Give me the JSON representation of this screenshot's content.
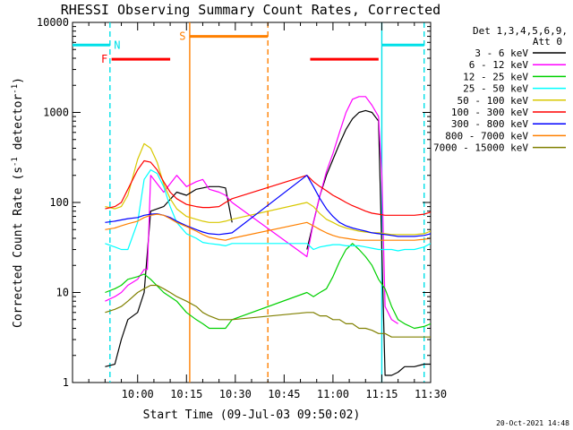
{
  "chart_data": {
    "type": "line",
    "title": "RHESSI Observing Summary Count Rates, Corrected",
    "xlabel": "Start Time (09-Jul-03 09:50:02)",
    "ylabel_main": "Corrected Count Rate (s",
    "ylabel_sup1": "-1",
    "ylabel_mid": " detector",
    "ylabel_sup2": "-1",
    "ylabel_end": ")",
    "yscale": "log",
    "ylim": [
      1,
      10000
    ],
    "xlim": [
      -10,
      100
    ],
    "x_units": "minutes after 09:50",
    "x_ticks": [
      {
        "x": 10,
        "label": "10:00"
      },
      {
        "x": 25,
        "label": "10:15"
      },
      {
        "x": 40,
        "label": "10:30"
      },
      {
        "x": 55,
        "label": "10:45"
      },
      {
        "x": 70,
        "label": "11:00"
      },
      {
        "x": 85,
        "label": "11:15"
      },
      {
        "x": 100,
        "label": "11:30"
      }
    ],
    "y_ticks": [
      {
        "y": 1,
        "label": "1"
      },
      {
        "y": 10,
        "label": "10"
      },
      {
        "y": 100,
        "label": "100"
      },
      {
        "y": 1000,
        "label": "1000"
      },
      {
        "y": 10000,
        "label": "10000"
      }
    ],
    "legend_header_1": "Det 1,3,4,5,6,9,",
    "legend_header_2": "Att 0",
    "legend_position": "top-right",
    "timestamp": "20-Oct-2021 14:48",
    "series": [
      {
        "name": "3 - 6 keV",
        "color": "#000000",
        "x": [
          -10,
          -1,
          0,
          3,
          5,
          7,
          10,
          12,
          14,
          18,
          22,
          25,
          28,
          30,
          32,
          35,
          37,
          39,
          41,
          58,
          62,
          64,
          66,
          68,
          70,
          72,
          74,
          76,
          78,
          80,
          82,
          84,
          86,
          88,
          90,
          92,
          95,
          98,
          100
        ],
        "values": [
          null,
          null,
          1.5,
          1.6,
          3,
          5,
          6,
          10,
          80,
          90,
          130,
          120,
          140,
          145,
          150,
          150,
          145,
          60,
          null,
          null,
          30,
          60,
          120,
          200,
          300,
          450,
          650,
          850,
          1000,
          1050,
          1000,
          800,
          1.2,
          1.2,
          1.3,
          1.5,
          1.5,
          1.6,
          1.6
        ]
      },
      {
        "name": "6 - 12 keV",
        "color": "#ff00ff",
        "x": [
          -1,
          0,
          3,
          5,
          7,
          10,
          12,
          13,
          14,
          18,
          22,
          25,
          28,
          30,
          32,
          35,
          37,
          39,
          62,
          64,
          66,
          68,
          70,
          72,
          74,
          76,
          78,
          80,
          82,
          84,
          85,
          86,
          88,
          90
        ],
        "values": [
          null,
          8,
          9,
          10,
          12,
          14,
          18,
          18,
          200,
          130,
          200,
          150,
          170,
          180,
          140,
          130,
          120,
          100,
          25,
          60,
          120,
          220,
          350,
          600,
          1000,
          1400,
          1500,
          1500,
          1200,
          900,
          200,
          7,
          5,
          4.5
        ]
      },
      {
        "name": "12 - 25 keV",
        "color": "#00d000",
        "x": [
          -1,
          0,
          3,
          5,
          7,
          10,
          12,
          14,
          18,
          22,
          25,
          28,
          30,
          32,
          35,
          37,
          39,
          62,
          64,
          66,
          68,
          70,
          72,
          74,
          76,
          78,
          80,
          82,
          84,
          86,
          88,
          90,
          92,
          95,
          98,
          100
        ],
        "values": [
          null,
          10,
          11,
          12,
          14,
          15,
          16,
          14,
          10,
          8,
          6,
          5,
          4.5,
          4,
          4,
          4,
          5,
          10,
          9,
          10,
          11,
          15,
          22,
          30,
          35,
          30,
          25,
          20,
          14,
          11,
          7,
          5,
          4.5,
          4,
          4.2,
          4.5
        ]
      },
      {
        "name": "25 - 50 keV",
        "color": "#00ffff",
        "x": [
          -1,
          0,
          3,
          5,
          7,
          10,
          12,
          14,
          16,
          18,
          20,
          22,
          25,
          28,
          30,
          32,
          35,
          37,
          39,
          62,
          64,
          66,
          68,
          70,
          72,
          74,
          76,
          78,
          80,
          82,
          84,
          86,
          88,
          90,
          92,
          95,
          98,
          100
        ],
        "values": [
          null,
          35,
          32,
          30,
          30,
          60,
          180,
          230,
          210,
          150,
          90,
          60,
          45,
          40,
          36,
          35,
          34,
          33,
          35,
          35,
          30,
          32,
          33,
          34,
          34,
          33,
          33,
          33,
          32,
          31,
          30,
          30,
          30,
          29,
          30,
          30,
          32,
          35
        ]
      },
      {
        "name": "50 - 100 keV",
        "color": "#d8c800",
        "x": [
          -1,
          0,
          3,
          5,
          7,
          10,
          12,
          14,
          16,
          18,
          20,
          22,
          25,
          28,
          30,
          32,
          35,
          37,
          39,
          62,
          64,
          66,
          68,
          70,
          72,
          74,
          76,
          78,
          80,
          82,
          84,
          86,
          88,
          90,
          92,
          95,
          98,
          100
        ],
        "values": [
          null,
          90,
          85,
          90,
          120,
          300,
          450,
          400,
          280,
          160,
          110,
          85,
          70,
          65,
          62,
          60,
          60,
          62,
          65,
          100,
          90,
          75,
          65,
          60,
          55,
          52,
          50,
          48,
          47,
          46,
          46,
          45,
          44,
          44,
          44,
          44,
          45,
          48
        ]
      },
      {
        "name": "100 - 300 keV",
        "color": "#ff0000",
        "x": [
          -1,
          0,
          3,
          5,
          7,
          10,
          12,
          14,
          16,
          18,
          20,
          22,
          25,
          28,
          30,
          32,
          35,
          37,
          39,
          62,
          64,
          66,
          68,
          70,
          72,
          74,
          76,
          78,
          80,
          82,
          84,
          86,
          88,
          90,
          92,
          95,
          98,
          100
        ],
        "values": [
          null,
          85,
          90,
          100,
          140,
          230,
          290,
          280,
          230,
          170,
          130,
          110,
          95,
          90,
          88,
          88,
          90,
          100,
          110,
          200,
          170,
          150,
          135,
          120,
          110,
          100,
          92,
          86,
          80,
          76,
          74,
          72,
          72,
          72,
          72,
          72,
          74,
          78
        ]
      },
      {
        "name": "300 - 800 keV",
        "color": "#0000ff",
        "x": [
          -1,
          0,
          3,
          5,
          7,
          10,
          12,
          14,
          16,
          18,
          20,
          22,
          25,
          28,
          30,
          32,
          35,
          37,
          39,
          62,
          64,
          66,
          68,
          70,
          72,
          74,
          76,
          78,
          80,
          82,
          84,
          86,
          88,
          90,
          92,
          95,
          98,
          100
        ],
        "values": [
          null,
          60,
          62,
          64,
          66,
          68,
          72,
          74,
          75,
          72,
          68,
          62,
          55,
          50,
          47,
          45,
          44,
          45,
          46,
          200,
          150,
          110,
          85,
          70,
          60,
          55,
          52,
          50,
          48,
          46,
          45,
          44,
          43,
          42,
          42,
          42,
          43,
          45
        ]
      },
      {
        "name": "800 - 7000 keV",
        "color": "#ff8000",
        "x": [
          -1,
          0,
          3,
          5,
          7,
          10,
          12,
          14,
          16,
          18,
          20,
          22,
          25,
          28,
          30,
          32,
          35,
          37,
          39,
          62,
          64,
          66,
          68,
          70,
          72,
          74,
          76,
          78,
          80,
          82,
          84,
          86,
          88,
          90,
          92,
          95,
          98,
          100
        ],
        "values": [
          null,
          50,
          52,
          55,
          58,
          62,
          68,
          72,
          74,
          72,
          66,
          60,
          54,
          48,
          44,
          41,
          39,
          38,
          40,
          60,
          55,
          50,
          46,
          43,
          41,
          40,
          39,
          38,
          38,
          38,
          38,
          38,
          38,
          38,
          38,
          38,
          39,
          40
        ]
      },
      {
        "name": "7000 - 15000 keV",
        "color": "#808000",
        "x": [
          -1,
          0,
          3,
          5,
          7,
          10,
          12,
          14,
          16,
          18,
          20,
          22,
          25,
          28,
          30,
          32,
          35,
          37,
          39,
          62,
          64,
          66,
          68,
          70,
          72,
          74,
          76,
          78,
          80,
          82,
          84,
          86,
          88,
          90,
          92,
          95,
          98,
          100
        ],
        "values": [
          null,
          6,
          6.5,
          7,
          8,
          10,
          11,
          12,
          12,
          11,
          10,
          9,
          8,
          7,
          6,
          5.5,
          5,
          5,
          5,
          6,
          6,
          5.5,
          5.5,
          5,
          5,
          4.5,
          4.5,
          4,
          4,
          3.8,
          3.5,
          3.5,
          3.2,
          3.2,
          3.2,
          3.2,
          3.2,
          3.2
        ]
      }
    ],
    "state_bars": [
      {
        "name": "N",
        "color": "#00e0e8",
        "segments": [
          [
            -10,
            1.5
          ],
          [
            85,
            98
          ]
        ],
        "level": 5600
      },
      {
        "name": "F",
        "color": "#ff0000",
        "segments": [
          [
            2,
            20
          ],
          [
            63,
            84
          ]
        ],
        "level": 3900
      },
      {
        "name": "S",
        "color": "#ff8000",
        "segments": [
          [
            26,
            50
          ]
        ],
        "level": 7000
      }
    ],
    "state_vlines": [
      {
        "x": 1.5,
        "color": "#00e0e8",
        "style": "dashed"
      },
      {
        "x": 26,
        "color": "#ff8000",
        "style": "solid"
      },
      {
        "x": 50,
        "color": "#ff8000",
        "style": "dashed"
      },
      {
        "x": 85,
        "color": "#00e0e8",
        "style": "solid"
      },
      {
        "x": 98,
        "color": "#00e0e8",
        "style": "dashed"
      }
    ]
  }
}
